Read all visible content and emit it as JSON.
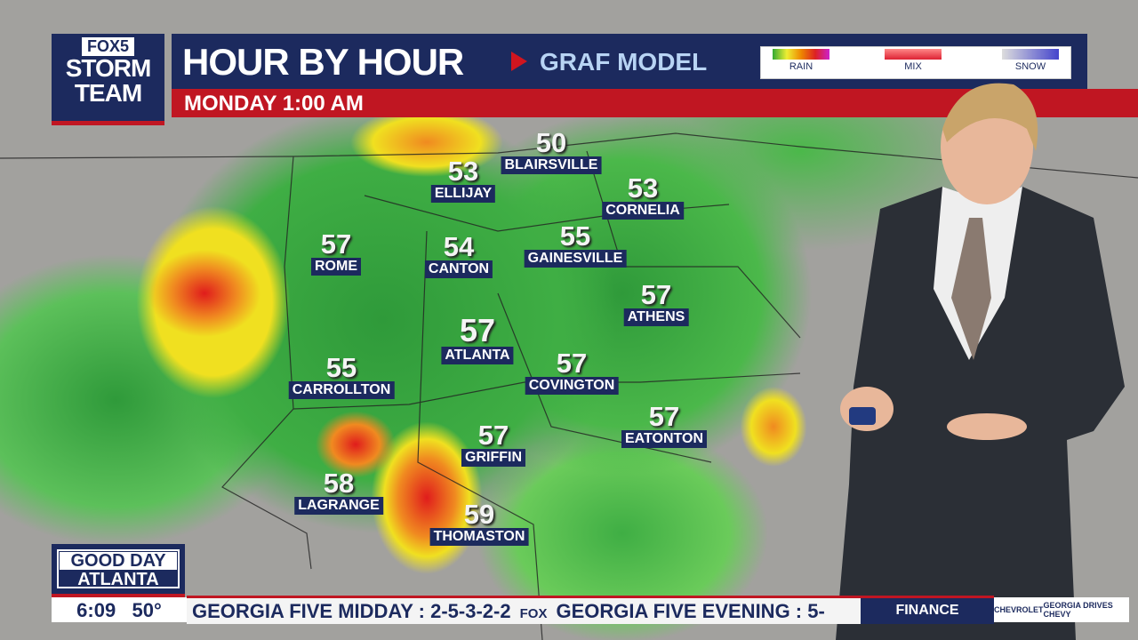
{
  "branding": {
    "station_logo": "FOX5",
    "storm_team": "STORM TEAM",
    "show_logo_line1": "GOOD DAY",
    "show_logo_line2": "ATLANTA"
  },
  "header": {
    "title": "HOUR BY HOUR",
    "model": "GRAF MODEL",
    "time": "MONDAY 1:00 AM"
  },
  "legend": {
    "items": [
      {
        "label": "RAIN",
        "color": "#e0e030"
      },
      {
        "label": "MIX",
        "color": "#e04050"
      },
      {
        "label": "SNOW",
        "color": "#4050c0"
      }
    ]
  },
  "cities": [
    {
      "name": "BLAIRSVILLE",
      "temp": "50"
    },
    {
      "name": "ELLIJAY",
      "temp": "53"
    },
    {
      "name": "CORNELIA",
      "temp": "53"
    },
    {
      "name": "ROME",
      "temp": "57"
    },
    {
      "name": "CANTON",
      "temp": "54"
    },
    {
      "name": "GAINESVILLE",
      "temp": "55"
    },
    {
      "name": "ATHENS",
      "temp": "57"
    },
    {
      "name": "ATLANTA",
      "temp": "57"
    },
    {
      "name": "COVINGTON",
      "temp": "57"
    },
    {
      "name": "CARROLLTON",
      "temp": "55"
    },
    {
      "name": "EATONTON",
      "temp": "57"
    },
    {
      "name": "GRIFFIN",
      "temp": "57"
    },
    {
      "name": "LAGRANGE",
      "temp": "58"
    },
    {
      "name": "THOMASTON",
      "temp": "59"
    }
  ],
  "lower_third": {
    "time": "6:09",
    "temperature": "50°",
    "ticker_1": "GEORGIA FIVE MIDDAY : 2-5-3-2-2",
    "ticker_sep": "FOX",
    "ticker_2": "GEORGIA FIVE EVENING : 5-",
    "segment": "FINANCE",
    "sponsor_1": "CHEVROLET",
    "sponsor_2": "GEORGIA DRIVES CHEVY"
  }
}
